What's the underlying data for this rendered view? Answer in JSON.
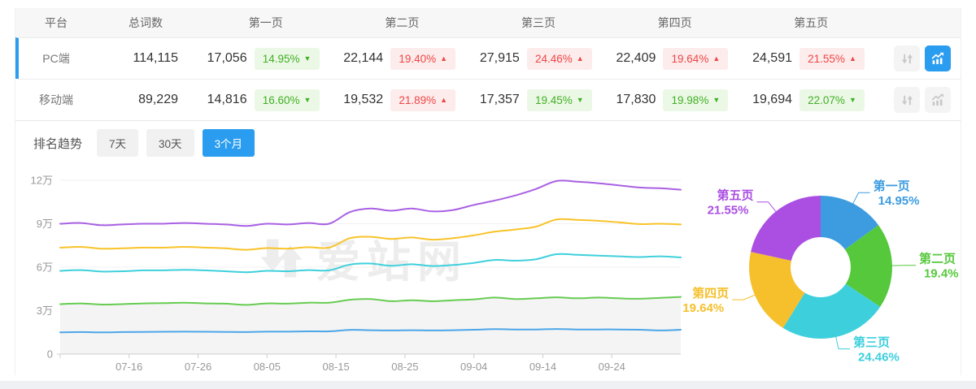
{
  "table": {
    "columns": [
      "平台",
      "总词数",
      "第一页",
      "第二页",
      "第三页",
      "第四页",
      "第五页"
    ],
    "rows": [
      {
        "id": "pc",
        "platform": "PC端",
        "total": "114,115",
        "selected": true,
        "pages": [
          {
            "value": "17,056",
            "pct": "14.95%",
            "direction": "down"
          },
          {
            "value": "22,144",
            "pct": "19.40%",
            "direction": "up"
          },
          {
            "value": "27,915",
            "pct": "24.46%",
            "direction": "up"
          },
          {
            "value": "22,409",
            "pct": "19.64%",
            "direction": "up"
          },
          {
            "value": "24,591",
            "pct": "21.55%",
            "direction": "up"
          }
        ],
        "chart_button_active": true
      },
      {
        "id": "mobile",
        "platform": "移动端",
        "total": "89,229",
        "selected": false,
        "pages": [
          {
            "value": "14,816",
            "pct": "16.60%",
            "direction": "down"
          },
          {
            "value": "19,532",
            "pct": "21.89%",
            "direction": "up"
          },
          {
            "value": "17,357",
            "pct": "19.45%",
            "direction": "down"
          },
          {
            "value": "17,830",
            "pct": "19.98%",
            "direction": "down"
          },
          {
            "value": "19,694",
            "pct": "22.07%",
            "direction": "down"
          }
        ],
        "chart_button_active": false
      }
    ]
  },
  "trend": {
    "label": "排名趋势",
    "tabs": [
      {
        "label": "7天",
        "active": false
      },
      {
        "label": "30天",
        "active": false
      },
      {
        "label": "3个月",
        "active": true
      }
    ]
  },
  "watermark": {
    "text": "爱站网"
  },
  "colors": {
    "accent_blue": "#2b9df0",
    "badge_up_red": "#f04545",
    "badge_up_bg": "#fdecec",
    "badge_down_green": "#3fb024",
    "badge_down_bg": "#ecf8e6",
    "grid": "#f1f1f1",
    "axis": "#cccccc",
    "area_fill": "#f4f4f4",
    "icon_gray": "#c8c8c8"
  },
  "chart_data": [
    {
      "type": "line",
      "x_tick_labels": [
        "07-16",
        "07-26",
        "08-05",
        "08-15",
        "08-25",
        "09-04",
        "09-14",
        "09-24"
      ],
      "x_tick_days": [
        10,
        20,
        30,
        40,
        50,
        60,
        70,
        80
      ],
      "x_range_days": [
        0,
        90
      ],
      "y_tick_labels": [
        "0",
        "3万",
        "6万",
        "9万",
        "12万"
      ],
      "y_tick_values_wan": [
        0,
        3,
        6,
        9,
        12
      ],
      "ylim_wan": [
        0,
        12
      ],
      "sample_days": [
        0,
        3,
        6,
        9,
        12,
        15,
        18,
        21,
        24,
        27,
        30,
        33,
        36,
        39,
        42,
        45,
        48,
        51,
        54,
        57,
        60,
        63,
        66,
        69,
        72,
        75,
        78,
        81,
        84,
        87,
        90
      ],
      "series": [
        {
          "name": "blue",
          "color": "#4ca6e8",
          "area_fill": false,
          "values_wan": [
            1.5,
            1.52,
            1.5,
            1.52,
            1.53,
            1.54,
            1.55,
            1.54,
            1.53,
            1.52,
            1.55,
            1.55,
            1.57,
            1.57,
            1.67,
            1.65,
            1.63,
            1.65,
            1.63,
            1.65,
            1.68,
            1.72,
            1.7,
            1.7,
            1.73,
            1.7,
            1.7,
            1.7,
            1.68,
            1.63,
            1.68
          ]
        },
        {
          "name": "green",
          "color": "#67cc52",
          "area_fill": true,
          "values_wan": [
            3.45,
            3.5,
            3.42,
            3.45,
            3.5,
            3.52,
            3.55,
            3.5,
            3.48,
            3.4,
            3.5,
            3.48,
            3.55,
            3.55,
            3.75,
            3.8,
            3.65,
            3.72,
            3.65,
            3.72,
            3.78,
            3.9,
            3.8,
            3.85,
            3.92,
            3.85,
            3.9,
            3.85,
            3.82,
            3.88,
            3.95
          ]
        },
        {
          "name": "cyan",
          "color": "#3fd0dc",
          "area_fill": false,
          "values_wan": [
            5.75,
            5.8,
            5.7,
            5.72,
            5.78,
            5.78,
            5.82,
            5.78,
            5.72,
            5.65,
            5.75,
            5.72,
            5.8,
            5.78,
            6.18,
            6.25,
            6.1,
            6.2,
            6.08,
            6.15,
            6.3,
            6.5,
            6.45,
            6.55,
            6.9,
            6.85,
            6.8,
            6.75,
            6.7,
            6.75,
            6.68
          ]
        },
        {
          "name": "yellow",
          "color": "#f8c32a",
          "area_fill": false,
          "values_wan": [
            7.35,
            7.4,
            7.28,
            7.3,
            7.35,
            7.35,
            7.4,
            7.35,
            7.3,
            7.2,
            7.32,
            7.28,
            7.38,
            7.35,
            8.0,
            8.1,
            7.95,
            8.05,
            7.9,
            8.0,
            8.2,
            8.45,
            8.6,
            8.8,
            9.3,
            9.27,
            9.2,
            9.1,
            8.98,
            9.0,
            8.95
          ]
        },
        {
          "name": "purple",
          "color": "#a961e3",
          "area_fill": false,
          "values_wan": [
            9.0,
            9.05,
            8.9,
            8.95,
            9.0,
            9.0,
            9.05,
            9.0,
            8.95,
            8.85,
            9.0,
            8.95,
            9.05,
            9.0,
            9.8,
            10.05,
            9.9,
            10.05,
            9.85,
            9.95,
            10.3,
            10.6,
            10.95,
            11.4,
            11.95,
            11.9,
            11.8,
            11.65,
            11.5,
            11.45,
            11.35
          ]
        }
      ]
    },
    {
      "type": "donut",
      "slices": [
        {
          "label": "第一页",
          "pct": 14.95,
          "pct_label": "14.95%",
          "color": "#3d9ce0"
        },
        {
          "label": "第二页",
          "pct": 19.4,
          "pct_label": "19.4%",
          "color": "#55c83c"
        },
        {
          "label": "第三页",
          "pct": 24.46,
          "pct_label": "24.46%",
          "color": "#3ecfdd"
        },
        {
          "label": "第四页",
          "pct": 19.64,
          "pct_label": "19.64%",
          "color": "#f5c02c"
        },
        {
          "label": "第五页",
          "pct": 21.55,
          "pct_label": "21.55%",
          "color": "#ab4fe3"
        }
      ]
    }
  ]
}
